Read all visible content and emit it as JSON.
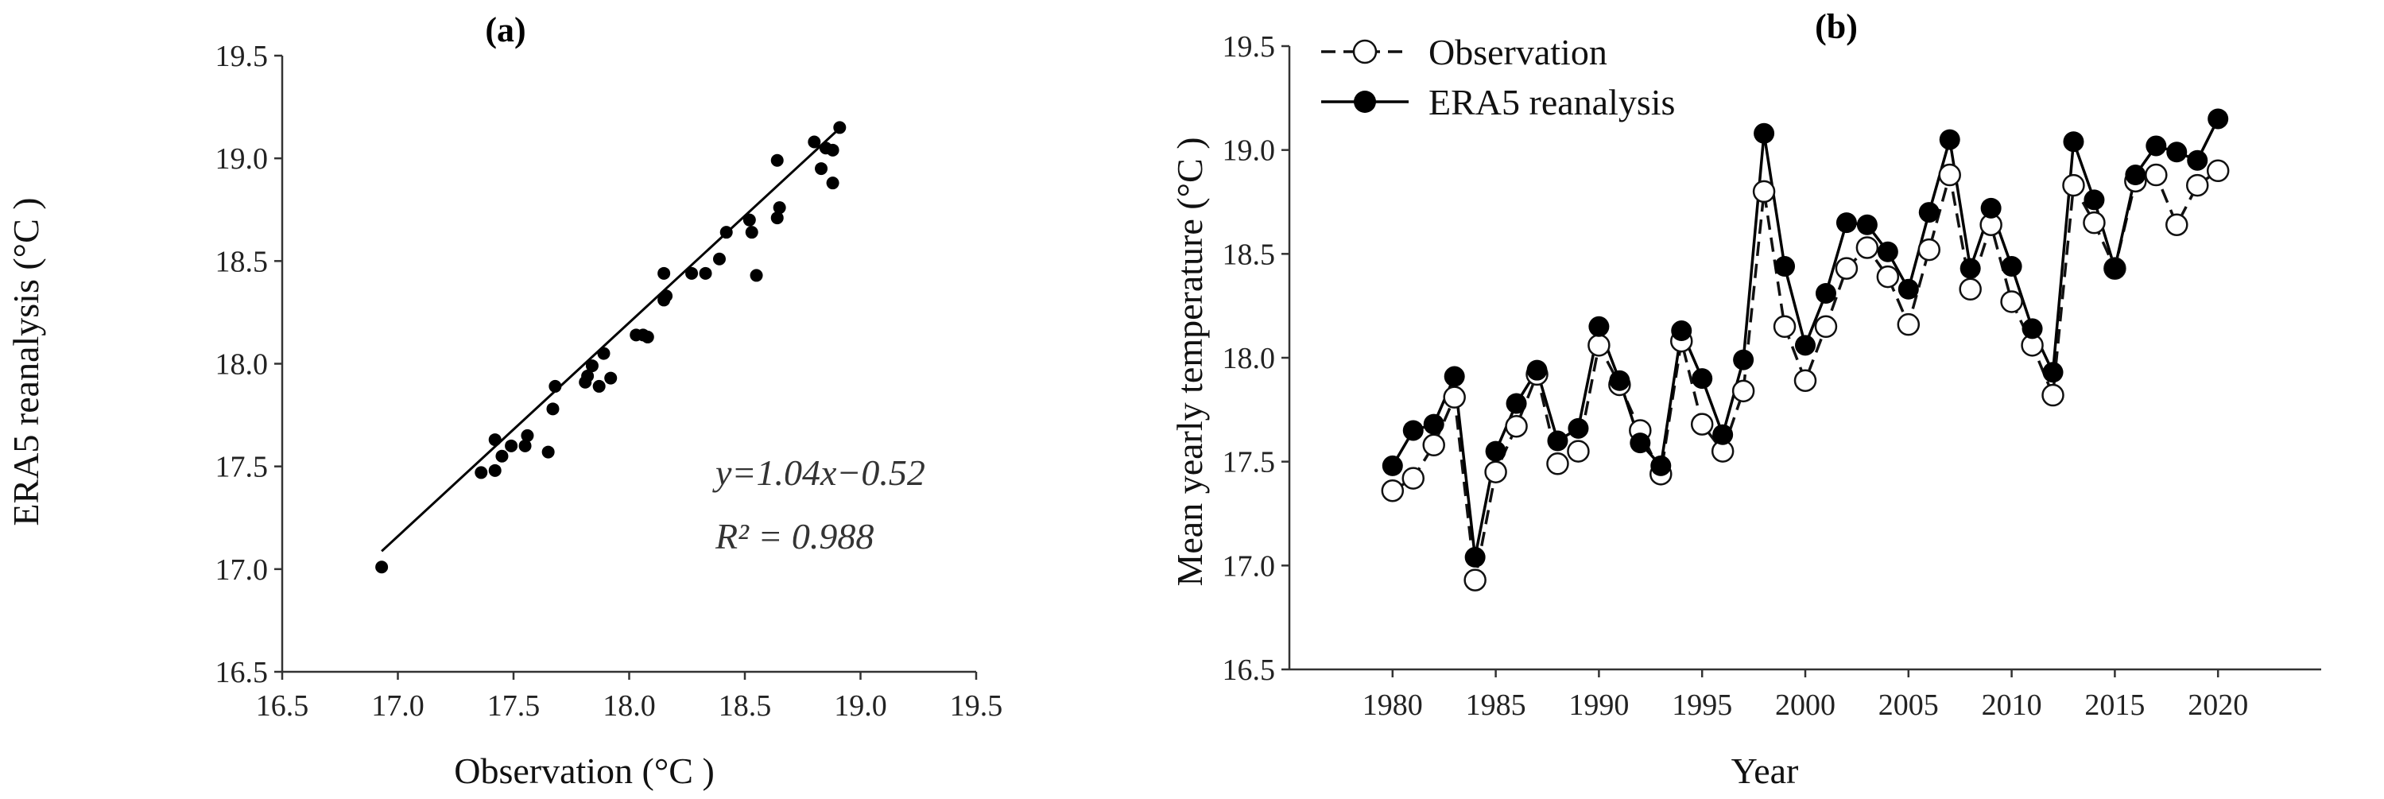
{
  "chart_data": [
    {
      "type": "scatter",
      "title": "(a)",
      "xlabel": "Observation (°C )",
      "ylabel": "ERA5 reanalysis (°C )",
      "xlim": [
        16.5,
        19.5
      ],
      "ylim": [
        16.5,
        19.5
      ],
      "xticks": [
        "16.5",
        "17.0",
        "17.5",
        "18.0",
        "18.5",
        "19.0",
        "19.5"
      ],
      "yticks": [
        "16.5",
        "17.0",
        "17.5",
        "18.0",
        "18.5",
        "19.0",
        "19.5"
      ],
      "grid": false,
      "points": [
        [
          16.93,
          17.01
        ],
        [
          17.36,
          17.47
        ],
        [
          17.42,
          17.48
        ],
        [
          17.42,
          17.63
        ],
        [
          17.45,
          17.55
        ],
        [
          17.49,
          17.6
        ],
        [
          17.55,
          17.6
        ],
        [
          17.56,
          17.65
        ],
        [
          17.65,
          17.57
        ],
        [
          17.67,
          17.78
        ],
        [
          17.68,
          17.89
        ],
        [
          17.81,
          17.91
        ],
        [
          17.82,
          17.94
        ],
        [
          17.84,
          17.99
        ],
        [
          17.87,
          17.89
        ],
        [
          17.89,
          18.05
        ],
        [
          17.92,
          17.93
        ],
        [
          18.03,
          18.14
        ],
        [
          18.06,
          18.14
        ],
        [
          18.08,
          18.13
        ],
        [
          18.15,
          18.31
        ],
        [
          18.15,
          18.44
        ],
        [
          18.16,
          18.33
        ],
        [
          18.27,
          18.44
        ],
        [
          18.33,
          18.44
        ],
        [
          18.39,
          18.51
        ],
        [
          18.42,
          18.64
        ],
        [
          18.52,
          18.7
        ],
        [
          18.53,
          18.64
        ],
        [
          18.55,
          18.43
        ],
        [
          18.64,
          18.71
        ],
        [
          18.64,
          18.99
        ],
        [
          18.65,
          18.76
        ],
        [
          18.8,
          19.08
        ],
        [
          18.83,
          18.95
        ],
        [
          18.85,
          19.05
        ],
        [
          18.88,
          18.88
        ],
        [
          18.88,
          19.04
        ],
        [
          18.91,
          19.15
        ]
      ],
      "fit": {
        "slope": 1.04,
        "intercept": -0.52,
        "x_range": [
          16.93,
          18.9
        ]
      },
      "annotations": [
        "y=1.04x−0.52",
        "R² = 0.988"
      ]
    },
    {
      "type": "line",
      "title": "(b)",
      "xlabel": "Year",
      "ylabel": "Mean yearly temperature (°C )",
      "xlim": [
        1975,
        2025
      ],
      "ylim": [
        16.5,
        19.5
      ],
      "xticks": [
        "1980",
        "1985",
        "1990",
        "1995",
        "2000",
        "2005",
        "2010",
        "2015",
        "2020"
      ],
      "yticks": [
        "16.5",
        "17.0",
        "17.5",
        "18.0",
        "18.5",
        "19.0",
        "19.5"
      ],
      "grid": false,
      "legend_position": "top-left",
      "x": [
        1980,
        1981,
        1982,
        1983,
        1984,
        1985,
        1986,
        1987,
        1988,
        1989,
        1990,
        1991,
        1992,
        1993,
        1994,
        1995,
        1996,
        1997,
        1998,
        1999,
        2000,
        2001,
        2002,
        2003,
        2004,
        2005,
        2006,
        2007,
        2008,
        2009,
        2010,
        2011,
        2012,
        2013,
        2014,
        2015,
        2016,
        2017,
        2018,
        2019,
        2020
      ],
      "series": [
        {
          "name": "Observation",
          "style": "dashed-open",
          "color": "#111111",
          "values": [
            17.36,
            17.42,
            17.58,
            17.81,
            16.93,
            17.45,
            17.67,
            17.92,
            17.49,
            17.55,
            18.06,
            17.87,
            17.65,
            17.44,
            18.08,
            17.68,
            17.55,
            17.84,
            18.8,
            18.15,
            17.89,
            18.15,
            18.43,
            18.53,
            18.39,
            18.16,
            18.52,
            18.88,
            18.33,
            18.64,
            18.27,
            18.06,
            17.82,
            18.83,
            18.65,
            18.43,
            18.85,
            18.88,
            18.64,
            18.83,
            18.9
          ]
        },
        {
          "name": "ERA5 reanalysis",
          "style": "solid-filled",
          "color": "#000000",
          "values": [
            17.48,
            17.65,
            17.68,
            17.91,
            17.04,
            17.55,
            17.78,
            17.94,
            17.6,
            17.66,
            18.15,
            17.89,
            17.59,
            17.48,
            18.13,
            17.9,
            17.63,
            17.99,
            19.08,
            18.44,
            18.06,
            18.31,
            18.65,
            18.64,
            18.51,
            18.33,
            18.7,
            19.05,
            18.43,
            18.72,
            18.44,
            18.14,
            17.93,
            19.04,
            18.76,
            18.43,
            18.88,
            19.02,
            18.99,
            18.95,
            19.15
          ]
        }
      ]
    }
  ]
}
